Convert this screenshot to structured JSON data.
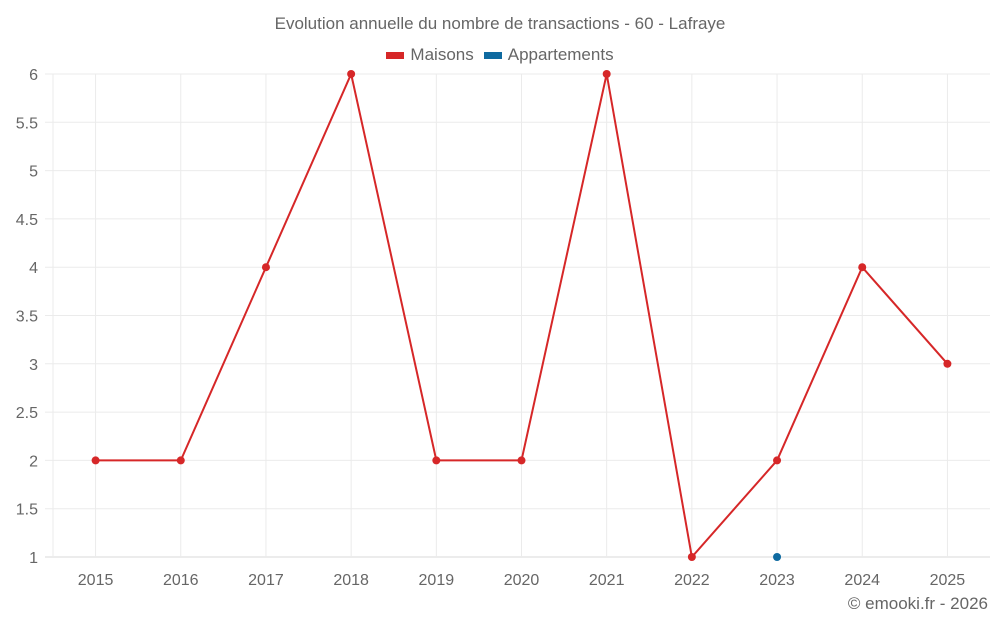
{
  "title": "Evolution annuelle du nombre de transactions - 60 - Lafraye",
  "legend": [
    {
      "label": "Maisons",
      "color": "#d62728"
    },
    {
      "label": "Appartements",
      "color": "#0e6aa0"
    }
  ],
  "credit": "© emooki.fr - 2026",
  "chart_data": {
    "type": "line",
    "title": "Evolution annuelle du nombre de transactions - 60 - Lafraye",
    "xlabel": "",
    "ylabel": "",
    "categories": [
      "2015",
      "2016",
      "2017",
      "2018",
      "2019",
      "2020",
      "2021",
      "2022",
      "2023",
      "2024",
      "2025"
    ],
    "series": [
      {
        "name": "Maisons",
        "color": "#d62728",
        "values": [
          2,
          2,
          4,
          6,
          2,
          2,
          6,
          1,
          2,
          4,
          3
        ]
      },
      {
        "name": "Appartements",
        "color": "#0e6aa0",
        "values": [
          null,
          null,
          null,
          null,
          null,
          null,
          null,
          null,
          1,
          null,
          null
        ]
      }
    ],
    "yticks": [
      "1",
      "1.5",
      "2",
      "2.5",
      "3",
      "3.5",
      "4",
      "4.5",
      "5",
      "5.5",
      "6"
    ],
    "ylim": [
      1,
      6
    ],
    "grid": true,
    "legend_position": "top"
  }
}
